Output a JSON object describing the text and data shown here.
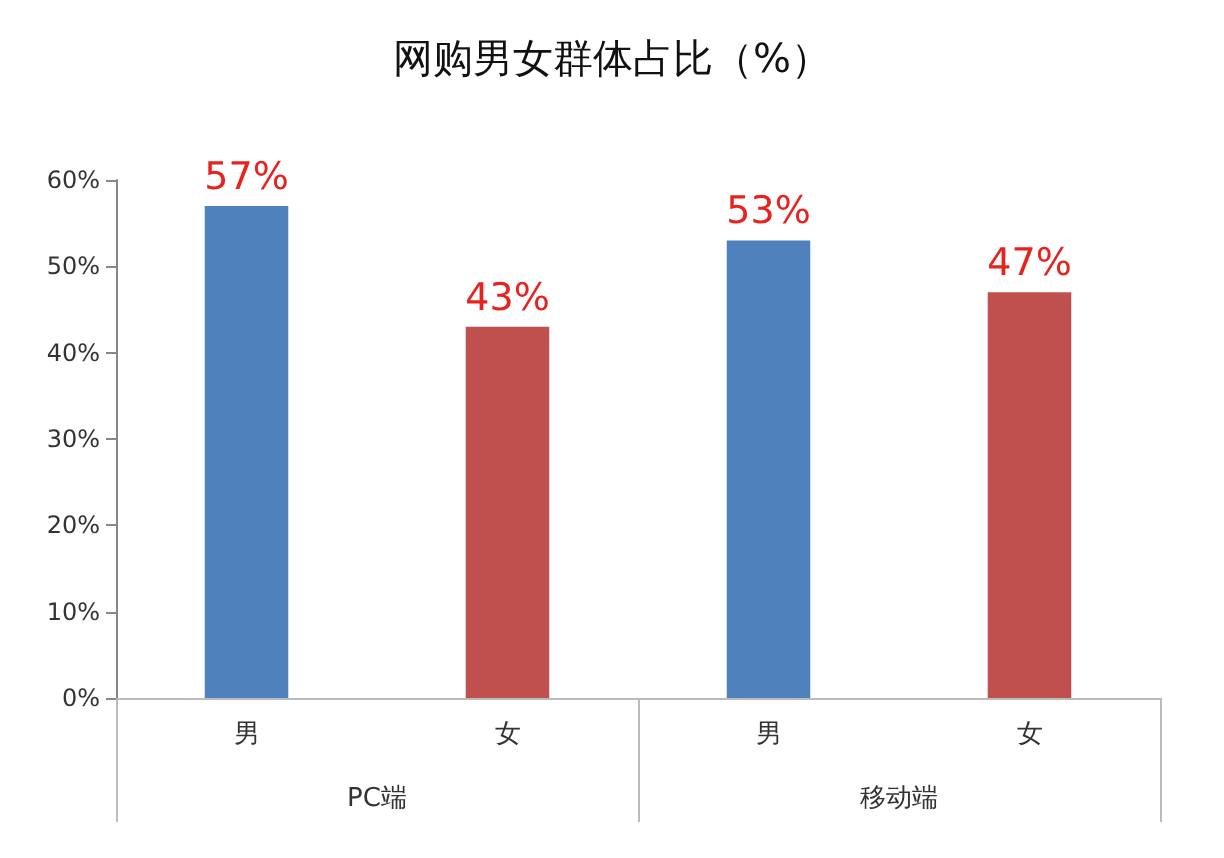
{
  "chart_data": {
    "type": "bar",
    "title": "网购男女群体占比（%）",
    "categories": [
      "PC端",
      "移动端"
    ],
    "series": [
      {
        "name": "男",
        "color": "#4f81bd",
        "values": [
          57,
          53
        ],
        "value_labels": [
          "57%",
          "53%"
        ]
      },
      {
        "name": "女",
        "color": "#c0504d",
        "values": [
          43,
          47
        ],
        "value_labels": [
          "43%",
          "47%"
        ]
      }
    ],
    "ylim": [
      0,
      60
    ],
    "yticks": [
      {
        "value": 0,
        "label": "0%"
      },
      {
        "value": 10,
        "label": "10%"
      },
      {
        "value": 20,
        "label": "20%"
      },
      {
        "value": 30,
        "label": "30%"
      },
      {
        "value": 40,
        "label": "40%"
      },
      {
        "value": 50,
        "label": "50%"
      },
      {
        "value": 60,
        "label": "60%"
      }
    ],
    "grid": false,
    "legend": false
  }
}
